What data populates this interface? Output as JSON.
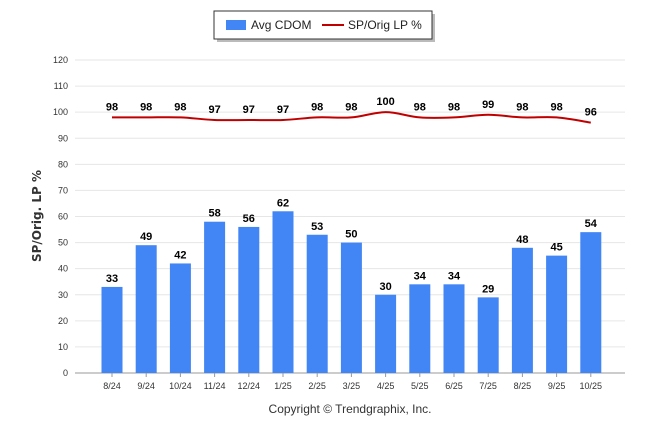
{
  "chart_data": {
    "type": "bar",
    "title": "",
    "xlabel": "",
    "ylabel": "SP/Orig. LP %",
    "ylim": [
      0,
      120
    ],
    "yticks": [
      0,
      10,
      20,
      30,
      40,
      50,
      60,
      70,
      80,
      90,
      100,
      110,
      120
    ],
    "grid": true,
    "legend_position": "top-center",
    "categories": [
      "8/24",
      "9/24",
      "10/24",
      "11/24",
      "12/24",
      "1/25",
      "2/25",
      "3/25",
      "4/25",
      "5/25",
      "6/25",
      "7/25",
      "8/25",
      "9/25",
      "10/25"
    ],
    "series": [
      {
        "name": "Avg CDOM",
        "type": "bar",
        "color": "#4285f4",
        "values": [
          33,
          49,
          42,
          58,
          56,
          62,
          53,
          50,
          30,
          34,
          34,
          29,
          48,
          45,
          54
        ]
      },
      {
        "name": "SP/Orig LP %",
        "type": "line",
        "color": "#c00000",
        "values": [
          98,
          98,
          98,
          97,
          97,
          97,
          98,
          98,
          100,
          98,
          98,
          99,
          98,
          98,
          96
        ]
      }
    ]
  },
  "footer": {
    "copyright": "Copyright © Trendgraphix, Inc."
  }
}
